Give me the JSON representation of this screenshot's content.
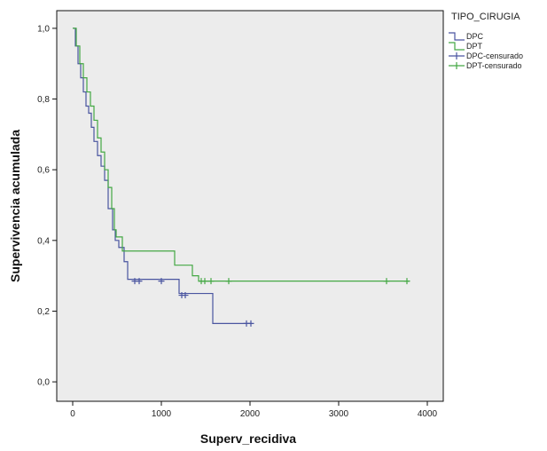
{
  "chart_data": {
    "type": "line",
    "xlabel": "Superv_recidiva",
    "ylabel": "Supervivencia acumulada",
    "xlim": [
      -180,
      4180
    ],
    "ylim": [
      -0.055,
      1.05
    ],
    "xticks": [
      0,
      1000,
      2000,
      3000,
      4000
    ],
    "xtick_labels": [
      "0",
      "1000",
      "2000",
      "3000",
      "4000"
    ],
    "yticks": [
      0.0,
      0.2,
      0.4,
      0.6,
      0.8,
      1.0
    ],
    "ytick_labels": [
      "0,0",
      "0,2",
      "0,4",
      "0,6",
      "0,8",
      "1,0"
    ],
    "grid": false,
    "legend_placement": "outside-top-right",
    "legend_title": "TIPO_CIRUGIA",
    "legend_entries": [
      {
        "label": "DPC",
        "marker": "step-line",
        "color": "#4a55a0"
      },
      {
        "label": "DPT",
        "marker": "step-line",
        "color": "#44a844"
      },
      {
        "label": "DPC-censurado",
        "marker": "plus",
        "color": "#4a55a0"
      },
      {
        "label": "DPT-censurado",
        "marker": "plus",
        "color": "#44a844"
      }
    ],
    "series": [
      {
        "name": "DPC",
        "color": "#4a55a0",
        "steps": [
          [
            0,
            1.0
          ],
          [
            30,
            0.95
          ],
          [
            60,
            0.9
          ],
          [
            90,
            0.86
          ],
          [
            120,
            0.82
          ],
          [
            150,
            0.78
          ],
          [
            180,
            0.76
          ],
          [
            210,
            0.72
          ],
          [
            240,
            0.68
          ],
          [
            280,
            0.64
          ],
          [
            320,
            0.61
          ],
          [
            360,
            0.57
          ],
          [
            400,
            0.49
          ],
          [
            450,
            0.43
          ],
          [
            480,
            0.4
          ],
          [
            520,
            0.38
          ],
          [
            580,
            0.34
          ],
          [
            620,
            0.29
          ],
          [
            1200,
            0.25
          ],
          [
            1580,
            0.165
          ],
          [
            2020,
            0.165
          ]
        ],
        "censored": [
          [
            700,
            0.285
          ],
          [
            750,
            0.285
          ],
          [
            1000,
            0.285
          ],
          [
            1230,
            0.245
          ],
          [
            1270,
            0.245
          ],
          [
            1960,
            0.165
          ],
          [
            2010,
            0.165
          ]
        ]
      },
      {
        "name": "DPT",
        "color": "#44a844",
        "steps": [
          [
            0,
            1.0
          ],
          [
            40,
            0.95
          ],
          [
            80,
            0.9
          ],
          [
            120,
            0.86
          ],
          [
            160,
            0.82
          ],
          [
            200,
            0.78
          ],
          [
            240,
            0.74
          ],
          [
            280,
            0.69
          ],
          [
            320,
            0.65
          ],
          [
            360,
            0.6
          ],
          [
            400,
            0.55
          ],
          [
            440,
            0.49
          ],
          [
            470,
            0.43
          ],
          [
            490,
            0.41
          ],
          [
            560,
            0.37
          ],
          [
            660,
            0.37
          ],
          [
            1150,
            0.33
          ],
          [
            1350,
            0.3
          ],
          [
            1420,
            0.285
          ],
          [
            3800,
            0.285
          ]
        ],
        "censored": [
          [
            1450,
            0.285
          ],
          [
            1490,
            0.285
          ],
          [
            1560,
            0.285
          ],
          [
            1760,
            0.285
          ],
          [
            3540,
            0.285
          ],
          [
            3770,
            0.285
          ]
        ]
      }
    ]
  }
}
